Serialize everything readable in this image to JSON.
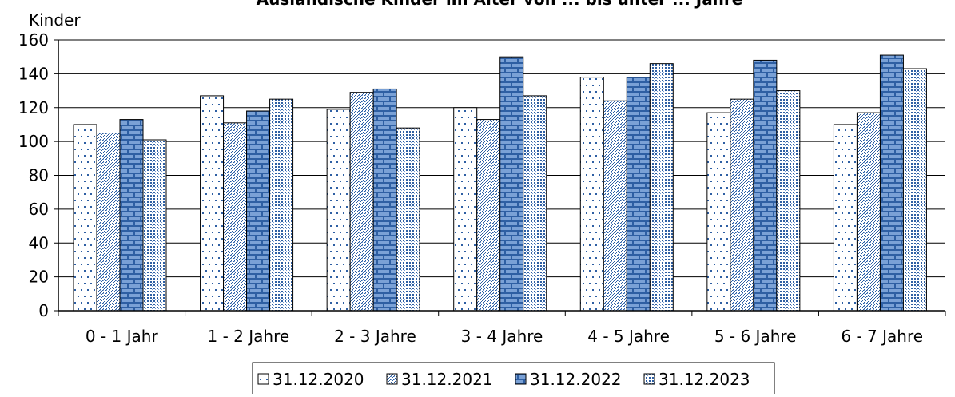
{
  "chart_data": {
    "type": "bar",
    "title": "Ausländische Kinder im Alter von ... bis unter ... Jahre",
    "ylabel": "Kinder",
    "xlabel": "",
    "ylim": [
      0,
      160
    ],
    "yticks": [
      0,
      20,
      40,
      60,
      80,
      100,
      120,
      140,
      160
    ],
    "grid": true,
    "legend_position": "bottom",
    "categories": [
      "0 - 1 Jahr",
      "1 - 2 Jahre",
      "2 - 3 Jahre",
      "3 - 4 Jahre",
      "4 - 5 Jahre",
      "5 - 6 Jahre",
      "6 - 7 Jahre"
    ],
    "series": [
      {
        "name": "31.12.2020",
        "pattern": "dots-sparse",
        "values": [
          110,
          127,
          119,
          120,
          138,
          117,
          110
        ]
      },
      {
        "name": "31.12.2021",
        "pattern": "diagonal-hatch",
        "values": [
          105,
          111,
          129,
          113,
          124,
          125,
          117
        ]
      },
      {
        "name": "31.12.2022",
        "pattern": "brick",
        "values": [
          113,
          118,
          131,
          150,
          138,
          148,
          151
        ]
      },
      {
        "name": "31.12.2023",
        "pattern": "dots-dense",
        "values": [
          101,
          125,
          108,
          127,
          146,
          130,
          143
        ]
      }
    ],
    "colors": {
      "accent": "#2e5fa3",
      "brick_fill": "#7aa1d6",
      "axis": "#000000",
      "grid": "#000000"
    }
  }
}
